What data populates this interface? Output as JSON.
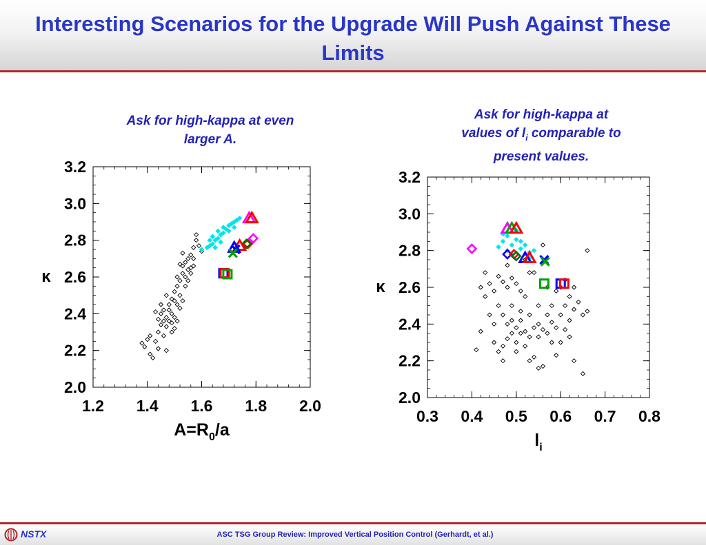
{
  "slide": {
    "title": "Interesting Scenarios for the Upgrade Will Push Against These Limits",
    "caption_left": "Ask for high-kappa at even larger A.",
    "caption_right_line1": "Ask for high-kappa at",
    "caption_right_line2_pre": "values of l",
    "caption_right_line2_sub": "i",
    "caption_right_line2_post": " comparable to",
    "caption_right_line3": "present values."
  },
  "footer": {
    "brand": "NSTX",
    "text": "ASC TSG Group Review: Improved Vertical Position Control (Gerhardt, et al.)"
  },
  "colors": {
    "title": "#2a36c8",
    "rule": "#b3242a",
    "database": "#000000",
    "cyan": "#00e5f0",
    "magenta": "#ff00ff",
    "red": "#ff0000",
    "blue": "#0000ff",
    "green": "#00a000",
    "darkgreen": "#007000"
  },
  "chart_data": [
    {
      "type": "scatter",
      "xlabel": "A=R0/a",
      "xlabel_parts": {
        "main": "A=R",
        "sub": "0",
        "tail": "/a"
      },
      "ylabel": "κ",
      "xlim": [
        1.2,
        2.0
      ],
      "ylim": [
        2.0,
        3.2
      ],
      "xticks": [
        "1.2",
        "1.4",
        "1.6",
        "1.8",
        "2.0"
      ],
      "yticks": [
        "2.0",
        "2.2",
        "2.4",
        "2.6",
        "2.8",
        "3.0",
        "3.2"
      ],
      "series": [
        {
          "marker": "diamond-open",
          "color": "#000000",
          "points": [
            [
              1.38,
              2.24
            ],
            [
              1.39,
              2.22
            ],
            [
              1.4,
              2.26
            ],
            [
              1.41,
              2.18
            ],
            [
              1.42,
              2.16
            ],
            [
              1.43,
              2.25
            ],
            [
              1.44,
              2.3
            ],
            [
              1.45,
              2.34
            ],
            [
              1.44,
              2.37
            ],
            [
              1.45,
              2.4
            ],
            [
              1.46,
              2.36
            ],
            [
              1.46,
              2.42
            ],
            [
              1.47,
              2.38
            ],
            [
              1.47,
              2.33
            ],
            [
              1.48,
              2.36
            ],
            [
              1.48,
              2.45
            ],
            [
              1.49,
              2.4
            ],
            [
              1.49,
              2.35
            ],
            [
              1.5,
              2.38
            ],
            [
              1.5,
              2.47
            ],
            [
              1.5,
              2.52
            ],
            [
              1.51,
              2.45
            ],
            [
              1.51,
              2.55
            ],
            [
              1.51,
              2.6
            ],
            [
              1.52,
              2.5
            ],
            [
              1.52,
              2.58
            ],
            [
              1.53,
              2.62
            ],
            [
              1.53,
              2.66
            ],
            [
              1.54,
              2.6
            ],
            [
              1.54,
              2.68
            ],
            [
              1.55,
              2.64
            ],
            [
              1.55,
              2.7
            ],
            [
              1.56,
              2.65
            ],
            [
              1.56,
              2.72
            ],
            [
              1.57,
              2.7
            ],
            [
              1.57,
              2.76
            ],
            [
              1.58,
              2.8
            ],
            [
              1.59,
              2.77
            ],
            [
              1.6,
              2.74
            ],
            [
              1.46,
              2.28
            ],
            [
              1.43,
              2.41
            ],
            [
              1.49,
              2.3
            ],
            [
              1.52,
              2.43
            ],
            [
              1.47,
              2.5
            ],
            [
              1.53,
              2.73
            ],
            [
              1.58,
              2.83
            ],
            [
              1.5,
              2.32
            ],
            [
              1.48,
              2.42
            ],
            [
              1.45,
              2.45
            ],
            [
              1.54,
              2.55
            ],
            [
              1.55,
              2.58
            ],
            [
              1.56,
              2.62
            ],
            [
              1.57,
              2.66
            ],
            [
              1.49,
              2.48
            ],
            [
              1.52,
              2.67
            ],
            [
              1.41,
              2.28
            ],
            [
              1.44,
              2.21
            ],
            [
              1.47,
              2.2
            ],
            [
              1.51,
              2.36
            ],
            [
              1.53,
              2.47
            ]
          ]
        },
        {
          "marker": "diamond-filled",
          "color": "#00e5f0",
          "points": [
            [
              1.6,
              2.75
            ],
            [
              1.62,
              2.76
            ],
            [
              1.63,
              2.77
            ],
            [
              1.64,
              2.78
            ],
            [
              1.64,
              2.82
            ],
            [
              1.65,
              2.8
            ],
            [
              1.66,
              2.81
            ],
            [
              1.66,
              2.85
            ],
            [
              1.67,
              2.83
            ],
            [
              1.68,
              2.84
            ],
            [
              1.68,
              2.87
            ],
            [
              1.69,
              2.86
            ],
            [
              1.7,
              2.88
            ],
            [
              1.7,
              2.85
            ],
            [
              1.71,
              2.89
            ],
            [
              1.72,
              2.87
            ],
            [
              1.72,
              2.9
            ],
            [
              1.73,
              2.91
            ],
            [
              1.74,
              2.92
            ],
            [
              1.63,
              2.8
            ],
            [
              1.65,
              2.76
            ],
            [
              1.67,
              2.79
            ]
          ]
        },
        {
          "marker": "triangle-open",
          "color": "#ff00ff",
          "points": [
            [
              1.775,
              2.92
            ]
          ]
        },
        {
          "marker": "triangle-open",
          "color": "#ff0000",
          "points": [
            [
              1.785,
              2.92
            ]
          ]
        },
        {
          "marker": "diamond-open",
          "color": "#ff00ff",
          "points": [
            [
              1.79,
              2.81
            ]
          ]
        },
        {
          "marker": "diamond-open",
          "color": "#ff0000",
          "points": [
            [
              1.77,
              2.78
            ]
          ]
        },
        {
          "marker": "diamond-open",
          "color": "#007000",
          "points": [
            [
              1.765,
              2.78
            ]
          ]
        },
        {
          "marker": "triangle-open",
          "color": "#ff0000",
          "points": [
            [
              1.74,
              2.77
            ]
          ]
        },
        {
          "marker": "triangle-open",
          "color": "#0000ff",
          "points": [
            [
              1.72,
              2.76
            ]
          ]
        },
        {
          "marker": "x",
          "color": "#0000ff",
          "points": [
            [
              1.725,
              2.75
            ]
          ]
        },
        {
          "marker": "x",
          "color": "#00a000",
          "points": [
            [
              1.715,
              2.73
            ]
          ]
        },
        {
          "marker": "square-open",
          "color": "#0000ff",
          "points": [
            [
              1.68,
              2.62
            ]
          ]
        },
        {
          "marker": "square-open",
          "color": "#ff0000",
          "points": [
            [
              1.685,
              2.62
            ]
          ]
        },
        {
          "marker": "square-open",
          "color": "#00a000",
          "points": [
            [
              1.695,
              2.615
            ]
          ]
        }
      ]
    },
    {
      "type": "scatter",
      "xlabel": "li",
      "xlabel_parts": {
        "main": "l",
        "sub": "i",
        "tail": ""
      },
      "ylabel": "κ",
      "xlim": [
        0.3,
        0.8
      ],
      "ylim": [
        2.0,
        3.2
      ],
      "xticks": [
        "0.3",
        "0.4",
        "0.5",
        "0.6",
        "0.7",
        "0.8"
      ],
      "yticks": [
        "2.0",
        "2.2",
        "2.4",
        "2.6",
        "2.8",
        "3.0",
        "3.2"
      ],
      "series": [
        {
          "marker": "diamond-open",
          "color": "#000000",
          "points": [
            [
              0.43,
              2.68
            ],
            [
              0.44,
              2.62
            ],
            [
              0.45,
              2.58
            ],
            [
              0.46,
              2.66
            ],
            [
              0.47,
              2.63
            ],
            [
              0.48,
              2.6
            ],
            [
              0.49,
              2.65
            ],
            [
              0.5,
              2.62
            ],
            [
              0.51,
              2.58
            ],
            [
              0.52,
              2.55
            ],
            [
              0.53,
              2.68
            ],
            [
              0.46,
              2.5
            ],
            [
              0.47,
              2.45
            ],
            [
              0.48,
              2.4
            ],
            [
              0.49,
              2.35
            ],
            [
              0.5,
              2.38
            ],
            [
              0.51,
              2.42
            ],
            [
              0.52,
              2.36
            ],
            [
              0.53,
              2.33
            ],
            [
              0.54,
              2.38
            ],
            [
              0.55,
              2.4
            ],
            [
              0.56,
              2.37
            ],
            [
              0.57,
              2.35
            ],
            [
              0.58,
              2.41
            ],
            [
              0.59,
              2.38
            ],
            [
              0.6,
              2.45
            ],
            [
              0.61,
              2.5
            ],
            [
              0.62,
              2.55
            ],
            [
              0.63,
              2.48
            ],
            [
              0.64,
              2.52
            ],
            [
              0.65,
              2.45
            ],
            [
              0.44,
              2.45
            ],
            [
              0.45,
              2.3
            ],
            [
              0.46,
              2.25
            ],
            [
              0.47,
              2.28
            ],
            [
              0.48,
              2.32
            ],
            [
              0.5,
              2.25
            ],
            [
              0.52,
              2.28
            ],
            [
              0.54,
              2.22
            ],
            [
              0.55,
              2.16
            ],
            [
              0.56,
              2.17
            ],
            [
              0.58,
              2.3
            ],
            [
              0.6,
              2.3
            ],
            [
              0.62,
              2.33
            ],
            [
              0.43,
              2.55
            ],
            [
              0.45,
              2.4
            ],
            [
              0.49,
              2.5
            ],
            [
              0.51,
              2.47
            ],
            [
              0.53,
              2.45
            ],
            [
              0.55,
              2.5
            ],
            [
              0.57,
              2.6
            ],
            [
              0.59,
              2.58
            ],
            [
              0.61,
              2.64
            ],
            [
              0.63,
              2.6
            ],
            [
              0.66,
              2.47
            ],
            [
              0.66,
              2.8
            ],
            [
              0.56,
              2.83
            ],
            [
              0.52,
              2.75
            ],
            [
              0.48,
              2.72
            ],
            [
              0.54,
              2.68
            ],
            [
              0.5,
              2.3
            ],
            [
              0.47,
              2.2
            ],
            [
              0.53,
              2.2
            ],
            [
              0.49,
              2.42
            ],
            [
              0.51,
              2.35
            ],
            [
              0.55,
              2.33
            ],
            [
              0.42,
              2.6
            ],
            [
              0.42,
              2.36
            ],
            [
              0.41,
              2.26
            ],
            [
              0.58,
              2.5
            ],
            [
              0.6,
              2.6
            ],
            [
              0.62,
              2.42
            ],
            [
              0.63,
              2.2
            ],
            [
              0.65,
              2.13
            ],
            [
              0.57,
              2.45
            ],
            [
              0.59,
              2.23
            ],
            [
              0.61,
              2.37
            ]
          ]
        },
        {
          "marker": "diamond-filled",
          "color": "#00e5f0",
          "points": [
            [
              0.46,
              2.82
            ],
            [
              0.47,
              2.85
            ],
            [
              0.48,
              2.88
            ],
            [
              0.48,
              2.8
            ],
            [
              0.49,
              2.83
            ],
            [
              0.5,
              2.86
            ],
            [
              0.51,
              2.81
            ],
            [
              0.51,
              2.85
            ],
            [
              0.52,
              2.78
            ],
            [
              0.52,
              2.83
            ],
            [
              0.53,
              2.79
            ],
            [
              0.53,
              2.76
            ],
            [
              0.54,
              2.8
            ],
            [
              0.5,
              2.91
            ],
            [
              0.49,
              2.78
            ],
            [
              0.47,
              2.89
            ]
          ]
        },
        {
          "marker": "diamond-open",
          "color": "#ff00ff",
          "points": [
            [
              0.4,
              2.81
            ]
          ]
        },
        {
          "marker": "triangle-open",
          "color": "#ff00ff",
          "points": [
            [
              0.48,
              2.92
            ]
          ]
        },
        {
          "marker": "triangle-open",
          "color": "#00a000",
          "points": [
            [
              0.49,
              2.92
            ]
          ]
        },
        {
          "marker": "triangle-open",
          "color": "#ff0000",
          "points": [
            [
              0.5,
              2.92
            ]
          ]
        },
        {
          "marker": "diamond-open",
          "color": "#0000ff",
          "points": [
            [
              0.48,
              2.78
            ]
          ]
        },
        {
          "marker": "diamond-open",
          "color": "#ff0000",
          "points": [
            [
              0.495,
              2.78
            ]
          ]
        },
        {
          "marker": "diamond-open",
          "color": "#007000",
          "points": [
            [
              0.5,
              2.77
            ]
          ]
        },
        {
          "marker": "triangle-open",
          "color": "#0000ff",
          "points": [
            [
              0.52,
              2.76
            ]
          ]
        },
        {
          "marker": "triangle-open",
          "color": "#ff0000",
          "points": [
            [
              0.53,
              2.76
            ]
          ]
        },
        {
          "marker": "x",
          "color": "#0000ff",
          "points": [
            [
              0.563,
              2.75
            ]
          ]
        },
        {
          "marker": "x",
          "color": "#00a000",
          "points": [
            [
              0.565,
              2.74
            ]
          ]
        },
        {
          "marker": "square-open",
          "color": "#00a000",
          "points": [
            [
              0.563,
              2.62
            ]
          ]
        },
        {
          "marker": "square-open",
          "color": "#0000ff",
          "points": [
            [
              0.6,
              2.62
            ]
          ]
        },
        {
          "marker": "square-open",
          "color": "#ff0000",
          "points": [
            [
              0.608,
              2.62
            ]
          ]
        }
      ]
    }
  ]
}
